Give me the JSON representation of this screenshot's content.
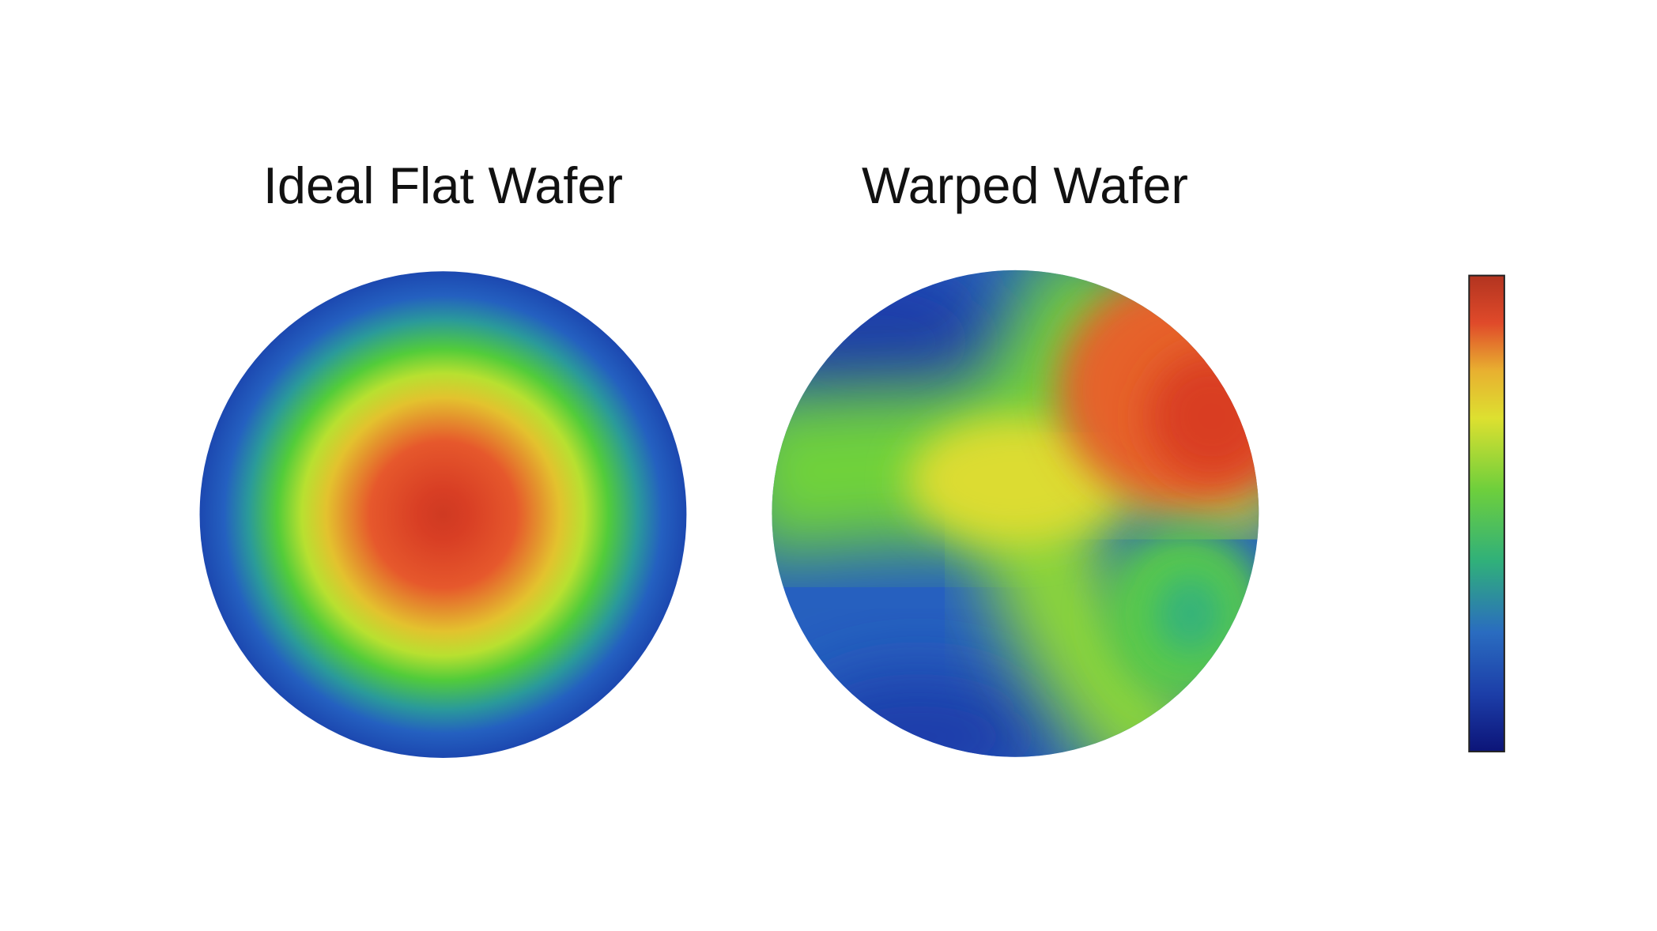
{
  "panels": [
    {
      "title": "Ideal Flat Wafer"
    },
    {
      "title": "Warped Wafer"
    }
  ]
}
